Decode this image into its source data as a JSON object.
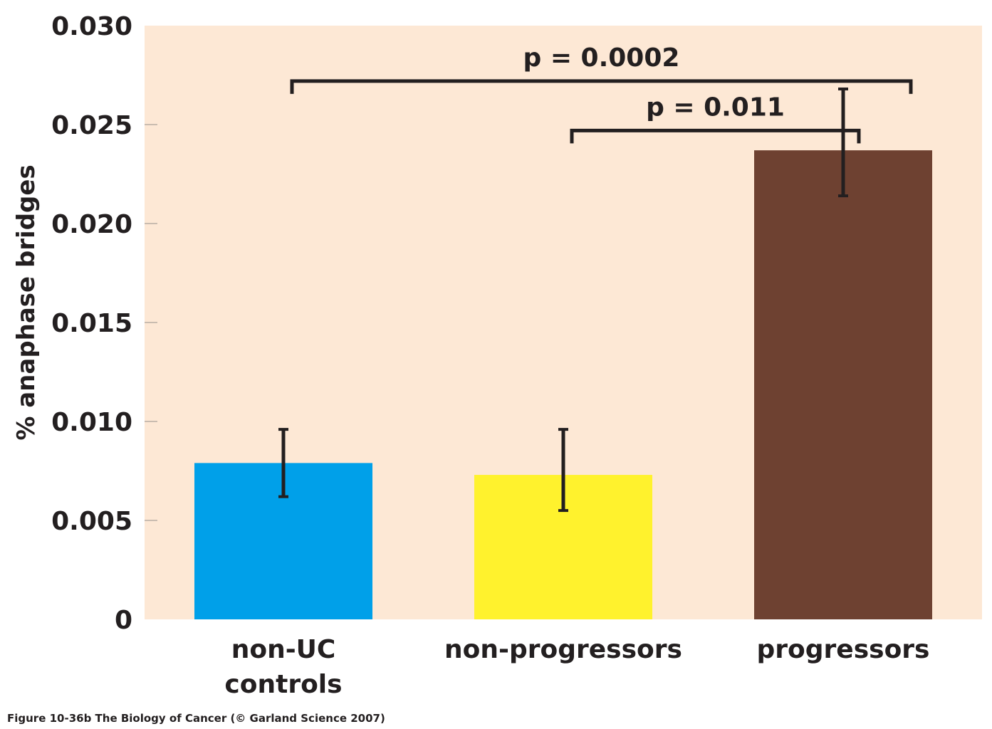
{
  "chart_data": {
    "type": "bar",
    "ylabel": "% anaphase bridges",
    "ylim": [
      0,
      0.03
    ],
    "yticks": [
      "0",
      "0.005",
      "0.010",
      "0.015",
      "0.020",
      "0.025",
      "0.030"
    ],
    "yticks_values": [
      0,
      0.005,
      0.01,
      0.015,
      0.02,
      0.025,
      0.03
    ],
    "categories": [
      [
        "non-UC",
        "controls"
      ],
      [
        "non-progressors"
      ],
      [
        "progressors"
      ]
    ],
    "values": [
      0.0079,
      0.0073,
      0.0237
    ],
    "error_low": [
      0.0062,
      0.0055,
      0.0214
    ],
    "error_high": [
      0.0096,
      0.0096,
      0.0268
    ],
    "colors": [
      "#00a0e9",
      "#fff22d",
      "#6e4131"
    ],
    "background": "#fde8d5",
    "annotations": [
      {
        "text": "p = 0.0002",
        "from": 0,
        "to": 2,
        "y": 0.0272
      },
      {
        "text": "p = 0.011",
        "from": 1,
        "to": 2,
        "y": 0.0247
      }
    ],
    "grid": false,
    "legend": "none"
  },
  "caption": "Figure 10-36b  The Biology of Cancer (© Garland Science 2007)"
}
